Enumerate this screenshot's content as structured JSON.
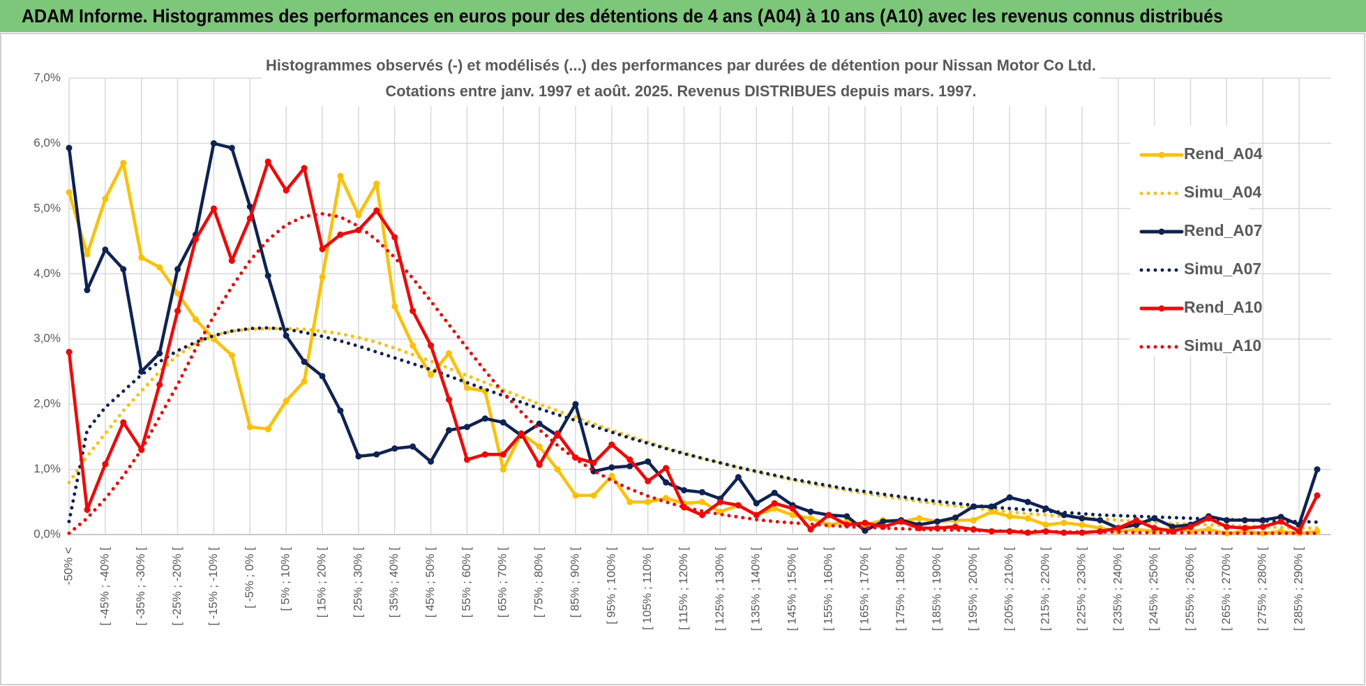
{
  "chart_data": {
    "type": "line",
    "title": "ADAM Informe. Histogrammes des performances en euros pour des détentions de 4 ans (A04) à 10 ans (A10) avec les revenus connus distribués",
    "subtitle": [
      "Histogrammes observés (-) et modélisés (...) des performances par durées de détention pour Nissan Motor Co Ltd.",
      "Cotations entre janv. 1997 et août. 2025. Revenus DISTRIBUES depuis mars. 1997."
    ],
    "categories": [
      "-50% <",
      null,
      "[ -45% ; -40% [",
      null,
      "[ -35% ; -30% [",
      null,
      "[ -25% ; -20% [",
      null,
      "[ -15% ; -10% [",
      null,
      "[ -5% ; 0% [",
      null,
      "[ 5% ; 10% [",
      null,
      "[ 15% ; 20% [",
      null,
      "[ 25% ; 30% [",
      null,
      "[ 35% ; 40% [",
      null,
      "[ 45% ; 50% [",
      null,
      "[ 55% ; 60% [",
      null,
      "[ 65% ; 70% [",
      null,
      "[ 75% ; 80% [",
      null,
      "[ 85% ; 90% [",
      null,
      "[ 95% ; 100% [",
      null,
      "[ 105% ; 110% [",
      null,
      "[ 115% ; 120% [",
      null,
      "[ 125% ; 130% [",
      null,
      "[ 135% ; 140% [",
      null,
      "[ 145% ; 150% [",
      null,
      "[ 155% ; 160% [",
      null,
      "[ 165% ; 170% [",
      null,
      "[ 175% ; 180% [",
      null,
      "[ 185% ; 190% [",
      null,
      "[ 195% ; 200% [",
      null,
      "[ 205% ; 210% [",
      null,
      "[ 215% ; 220% [",
      null,
      "[ 225% ; 230% [",
      null,
      "[ 235% ; 240% [",
      null,
      "[ 245% ; 250% [",
      null,
      "[ 255% ; 260% [",
      null,
      "[ 265% ; 270% [",
      null,
      "[ 275% ; 280% [",
      null,
      "[ 285% ; 290% [",
      null
    ],
    "series": [
      {
        "name": "Rend_A04",
        "color": "#ffc000",
        "line_style": "solid",
        "markers": true,
        "values": [
          5.25,
          4.3,
          5.15,
          5.7,
          4.25,
          4.1,
          3.7,
          3.3,
          3.0,
          2.75,
          1.65,
          1.62,
          2.05,
          2.35,
          3.95,
          5.5,
          4.9,
          5.38,
          3.5,
          2.9,
          2.45,
          2.78,
          2.25,
          2.2,
          1.0,
          1.55,
          1.35,
          1.0,
          0.6,
          0.6,
          0.9,
          0.5,
          0.5,
          0.56,
          0.48,
          0.5,
          0.35,
          0.45,
          0.3,
          0.4,
          0.3,
          0.25,
          0.15,
          0.2,
          0.15,
          0.22,
          0.2,
          0.25,
          0.2,
          0.22,
          0.22,
          0.35,
          0.28,
          0.25,
          0.15,
          0.18,
          0.15,
          0.1,
          0.05,
          0.08,
          0.05,
          0.1,
          0.05,
          0.08,
          0.02,
          0.05,
          0.02,
          0.05,
          0.02,
          0.05
        ]
      },
      {
        "name": "Simu_A04",
        "color": "#ffc000",
        "line_style": "dotted",
        "markers": false,
        "values": [
          0.8,
          1.2,
          1.55,
          1.9,
          2.2,
          2.5,
          2.75,
          2.93,
          3.05,
          3.12,
          3.15,
          3.16,
          3.16,
          3.15,
          3.12,
          3.08,
          3.02,
          2.95,
          2.86,
          2.76,
          2.66,
          2.55,
          2.44,
          2.33,
          2.22,
          2.11,
          2.0,
          1.9,
          1.8,
          1.7,
          1.6,
          1.51,
          1.42,
          1.33,
          1.25,
          1.17,
          1.1,
          1.03,
          0.96,
          0.9,
          0.84,
          0.78,
          0.73,
          0.68,
          0.63,
          0.59,
          0.55,
          0.51,
          0.47,
          0.44,
          0.41,
          0.38,
          0.35,
          0.32,
          0.3,
          0.28,
          0.26,
          0.24,
          0.22,
          0.2,
          0.19,
          0.17,
          0.16,
          0.15,
          0.14,
          0.13,
          0.12,
          0.11,
          0.1,
          0.1
        ]
      },
      {
        "name": "Rend_A07",
        "color": "#0d2356",
        "line_style": "solid",
        "markers": true,
        "values": [
          5.93,
          3.75,
          4.37,
          4.07,
          2.5,
          2.78,
          4.07,
          4.6,
          6.0,
          5.93,
          5.03,
          3.97,
          3.05,
          2.65,
          2.43,
          1.9,
          1.2,
          1.23,
          1.32,
          1.35,
          1.12,
          1.6,
          1.65,
          1.78,
          1.72,
          1.52,
          1.7,
          1.52,
          2.0,
          0.97,
          1.03,
          1.05,
          1.12,
          0.8,
          0.68,
          0.65,
          0.55,
          0.88,
          0.48,
          0.64,
          0.45,
          0.35,
          0.3,
          0.28,
          0.06,
          0.2,
          0.22,
          0.15,
          0.2,
          0.26,
          0.43,
          0.43,
          0.57,
          0.5,
          0.4,
          0.3,
          0.25,
          0.22,
          0.1,
          0.15,
          0.25,
          0.12,
          0.15,
          0.28,
          0.22,
          0.22,
          0.22,
          0.27,
          0.15,
          1.0
        ]
      },
      {
        "name": "Simu_A07",
        "color": "#0d2356",
        "line_style": "dotted",
        "markers": false,
        "values": [
          0.2,
          1.6,
          1.95,
          2.2,
          2.45,
          2.65,
          2.82,
          2.95,
          3.05,
          3.12,
          3.16,
          3.17,
          3.15,
          3.1,
          3.04,
          2.97,
          2.89,
          2.8,
          2.71,
          2.62,
          2.53,
          2.43,
          2.33,
          2.23,
          2.13,
          2.03,
          1.93,
          1.84,
          1.75,
          1.66,
          1.57,
          1.48,
          1.4,
          1.32,
          1.24,
          1.17,
          1.1,
          1.03,
          0.97,
          0.91,
          0.85,
          0.8,
          0.75,
          0.7,
          0.66,
          0.62,
          0.58,
          0.54,
          0.51,
          0.48,
          0.45,
          0.42,
          0.4,
          0.38,
          0.36,
          0.34,
          0.32,
          0.3,
          0.29,
          0.28,
          0.27,
          0.26,
          0.25,
          0.24,
          0.23,
          0.22,
          0.21,
          0.2,
          0.2,
          0.19
        ]
      },
      {
        "name": "Rend_A10",
        "color": "#ff0000",
        "line_style": "solid",
        "markers": true,
        "values": [
          2.8,
          0.38,
          1.08,
          1.72,
          1.3,
          2.3,
          3.43,
          4.53,
          5.0,
          4.2,
          4.85,
          5.72,
          5.28,
          5.62,
          4.38,
          4.6,
          4.67,
          4.97,
          4.56,
          3.43,
          2.9,
          2.07,
          1.15,
          1.23,
          1.23,
          1.55,
          1.07,
          1.55,
          1.18,
          1.1,
          1.38,
          1.15,
          0.82,
          1.02,
          0.42,
          0.3,
          0.5,
          0.45,
          0.3,
          0.48,
          0.4,
          0.08,
          0.3,
          0.15,
          0.18,
          0.12,
          0.2,
          0.1,
          0.1,
          0.12,
          0.08,
          0.05,
          0.05,
          0.03,
          0.05,
          0.03,
          0.03,
          0.05,
          0.1,
          0.22,
          0.1,
          0.05,
          0.12,
          0.25,
          0.12,
          0.1,
          0.12,
          0.2,
          0.05,
          0.6
        ]
      },
      {
        "name": "Simu_A10",
        "color": "#ff0000",
        "line_style": "dotted",
        "markers": false,
        "values": [
          0.02,
          0.25,
          0.55,
          0.9,
          1.3,
          1.8,
          2.3,
          2.85,
          3.35,
          3.8,
          4.2,
          4.52,
          4.75,
          4.88,
          4.92,
          4.87,
          4.73,
          4.52,
          4.25,
          3.93,
          3.58,
          3.22,
          2.86,
          2.51,
          2.18,
          1.88,
          1.61,
          1.37,
          1.16,
          0.98,
          0.83,
          0.7,
          0.59,
          0.5,
          0.42,
          0.36,
          0.31,
          0.27,
          0.23,
          0.2,
          0.18,
          0.16,
          0.14,
          0.12,
          0.11,
          0.1,
          0.09,
          0.08,
          0.07,
          0.07,
          0.06,
          0.06,
          0.05,
          0.05,
          0.05,
          0.04,
          0.04,
          0.04,
          0.04,
          0.03,
          0.03,
          0.03,
          0.03,
          0.03,
          0.02,
          0.02,
          0.02,
          0.02,
          0.02,
          0.02
        ]
      }
    ],
    "ylim": [
      0,
      7
    ],
    "yticks": [
      {
        "value": 0,
        "label": "0,0%"
      },
      {
        "value": 1,
        "label": "1,0%"
      },
      {
        "value": 2,
        "label": "2,0%"
      },
      {
        "value": 3,
        "label": "3,0%"
      },
      {
        "value": 4,
        "label": "4,0%"
      },
      {
        "value": 5,
        "label": "5,0%"
      },
      {
        "value": 6,
        "label": "6,0%"
      },
      {
        "value": 7,
        "label": "7,0%"
      }
    ],
    "grid": true,
    "legend": "right"
  }
}
